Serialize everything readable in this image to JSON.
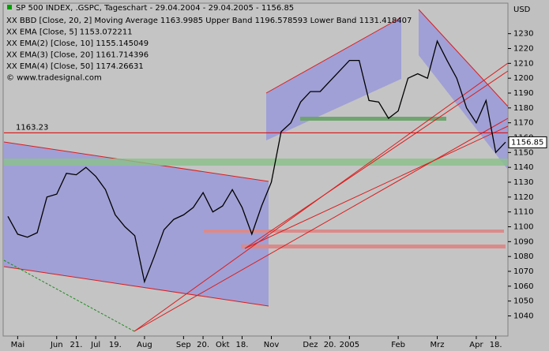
{
  "chart_data": {
    "type": "line",
    "title": "SP 500 INDEX, .GSPC, Tageschart - 29.04.2004 - 29.04.2005 - 1156.85",
    "y_label": "USD",
    "legend": [
      {
        "text": "XX BBD [Close, 20, 2] Moving Average 1163.9985 Upper Band 1196.578593 Lower Band 1131.418407",
        "color": "#ffff60"
      },
      {
        "text": "XX EMA [Close, 5] 1153.072211",
        "color": "#ffffff"
      },
      {
        "text": "XX EMA(2) [Close, 10] 1155.145049",
        "color": "#80ff80"
      },
      {
        "text": "XX EMA(3) [Close, 20] 1161.714396",
        "color": "#2020c0"
      },
      {
        "text": "XX EMA(4) [Close, 50] 1174.26631",
        "color": "#000080"
      },
      {
        "text": "© www.tradesignal.com",
        "color": "#000000"
      }
    ],
    "categories": [
      null,
      "Mai",
      null,
      null,
      null,
      "Jun",
      null,
      "21.",
      null,
      "Jul",
      null,
      "19.",
      null,
      null,
      "Aug",
      null,
      null,
      null,
      "Sep",
      null,
      "20.",
      null,
      "Okt",
      null,
      "18.",
      null,
      null,
      "Nov",
      null,
      null,
      null,
      "Dez",
      null,
      "20.",
      null,
      "2005",
      null,
      null,
      null,
      null,
      "Feb",
      null,
      null,
      null,
      "Mrz",
      null,
      null,
      null,
      "Apr",
      null,
      "18.",
      null
    ],
    "series": [
      {
        "name": "SP 500 INDEX",
        "color": "#000000",
        "values": [
          1107,
          1095,
          1093,
          1096,
          1120,
          1122,
          1136,
          1135,
          1140,
          1134,
          1125,
          1108,
          1100,
          1094,
          1063,
          1080,
          1098,
          1105,
          1108,
          1113,
          1123,
          1110,
          1114,
          1125,
          1113,
          1095,
          1114,
          1130,
          1164,
          1170,
          1184,
          1191,
          1191,
          1198,
          1205,
          1212,
          1212,
          1185,
          1184,
          1173,
          1178,
          1200,
          1203,
          1200,
          1225,
          1212,
          1200,
          1180,
          1170,
          1185,
          1150,
          1157
        ]
      }
    ],
    "ylim": [
      1027,
      1250
    ],
    "yticks": [
      1040,
      1050,
      1060,
      1070,
      1080,
      1090,
      1100,
      1110,
      1120,
      1130,
      1140,
      1150,
      1160,
      1170,
      1180,
      1190,
      1200,
      1210,
      1220,
      1230
    ],
    "hlines": [
      {
        "value": 1163.23,
        "color": "#e00000"
      }
    ],
    "last_value": 1156.85
  }
}
